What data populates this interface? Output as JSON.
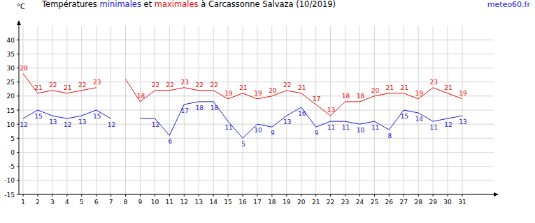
{
  "chart_data": {
    "type": "line",
    "title": "Températures minimales et maximales à Carcassonne Salvaza (10/2019)",
    "source": "meteo60.fr",
    "y_label": "°C",
    "categories": [
      "1",
      "2",
      "3",
      "4",
      "5",
      "6",
      "7",
      "8",
      "9",
      "10",
      "11",
      "12",
      "13",
      "14",
      "15",
      "16",
      "17",
      "18",
      "19",
      "20",
      "21",
      "22",
      "23",
      "24",
      "25",
      "26",
      "27",
      "28",
      "29",
      "30",
      "31"
    ],
    "ylim": [
      -15,
      45
    ],
    "yticks": [
      -15,
      -10,
      -5,
      0,
      5,
      10,
      15,
      20,
      25,
      30,
      35,
      40
    ],
    "grid": true,
    "data_labels": true,
    "series": [
      {
        "name": "minimales",
        "color": "#1c1ccc",
        "values": [
          12,
          15,
          13,
          12,
          13,
          15,
          12,
          null,
          12,
          12,
          6,
          17,
          18,
          18,
          11,
          5,
          10,
          9,
          13,
          16,
          9,
          11,
          11,
          10,
          11,
          8,
          15,
          14,
          11,
          12,
          13
        ],
        "value_labels": [
          "12",
          "15",
          "13",
          "12",
          "13",
          "15",
          "12",
          null,
          null,
          "12",
          "6",
          "17",
          "18",
          "18",
          "11",
          "5",
          "10",
          "9",
          "13",
          "16",
          "9",
          "11",
          "11",
          "10",
          "11",
          "8",
          "15",
          "14",
          "11",
          "12",
          "13"
        ]
      },
      {
        "name": "maximales",
        "color": "#e01010",
        "values": [
          28,
          21,
          22,
          21,
          22,
          23,
          null,
          26,
          18,
          22,
          22,
          23,
          22,
          22,
          19,
          21,
          19,
          20,
          22,
          21,
          17,
          13,
          18,
          18,
          20,
          21,
          21,
          19,
          23,
          21,
          19
        ],
        "value_labels": [
          "28",
          "21",
          "22",
          "21",
          "22",
          "23",
          null,
          null,
          "18",
          "22",
          "22",
          "23",
          "22",
          "22",
          "19",
          "21",
          "19",
          "20",
          "22",
          "21",
          "17",
          "13",
          "18",
          "18",
          "20",
          "21",
          "21",
          "19",
          "23",
          "21",
          "19"
        ]
      }
    ]
  }
}
